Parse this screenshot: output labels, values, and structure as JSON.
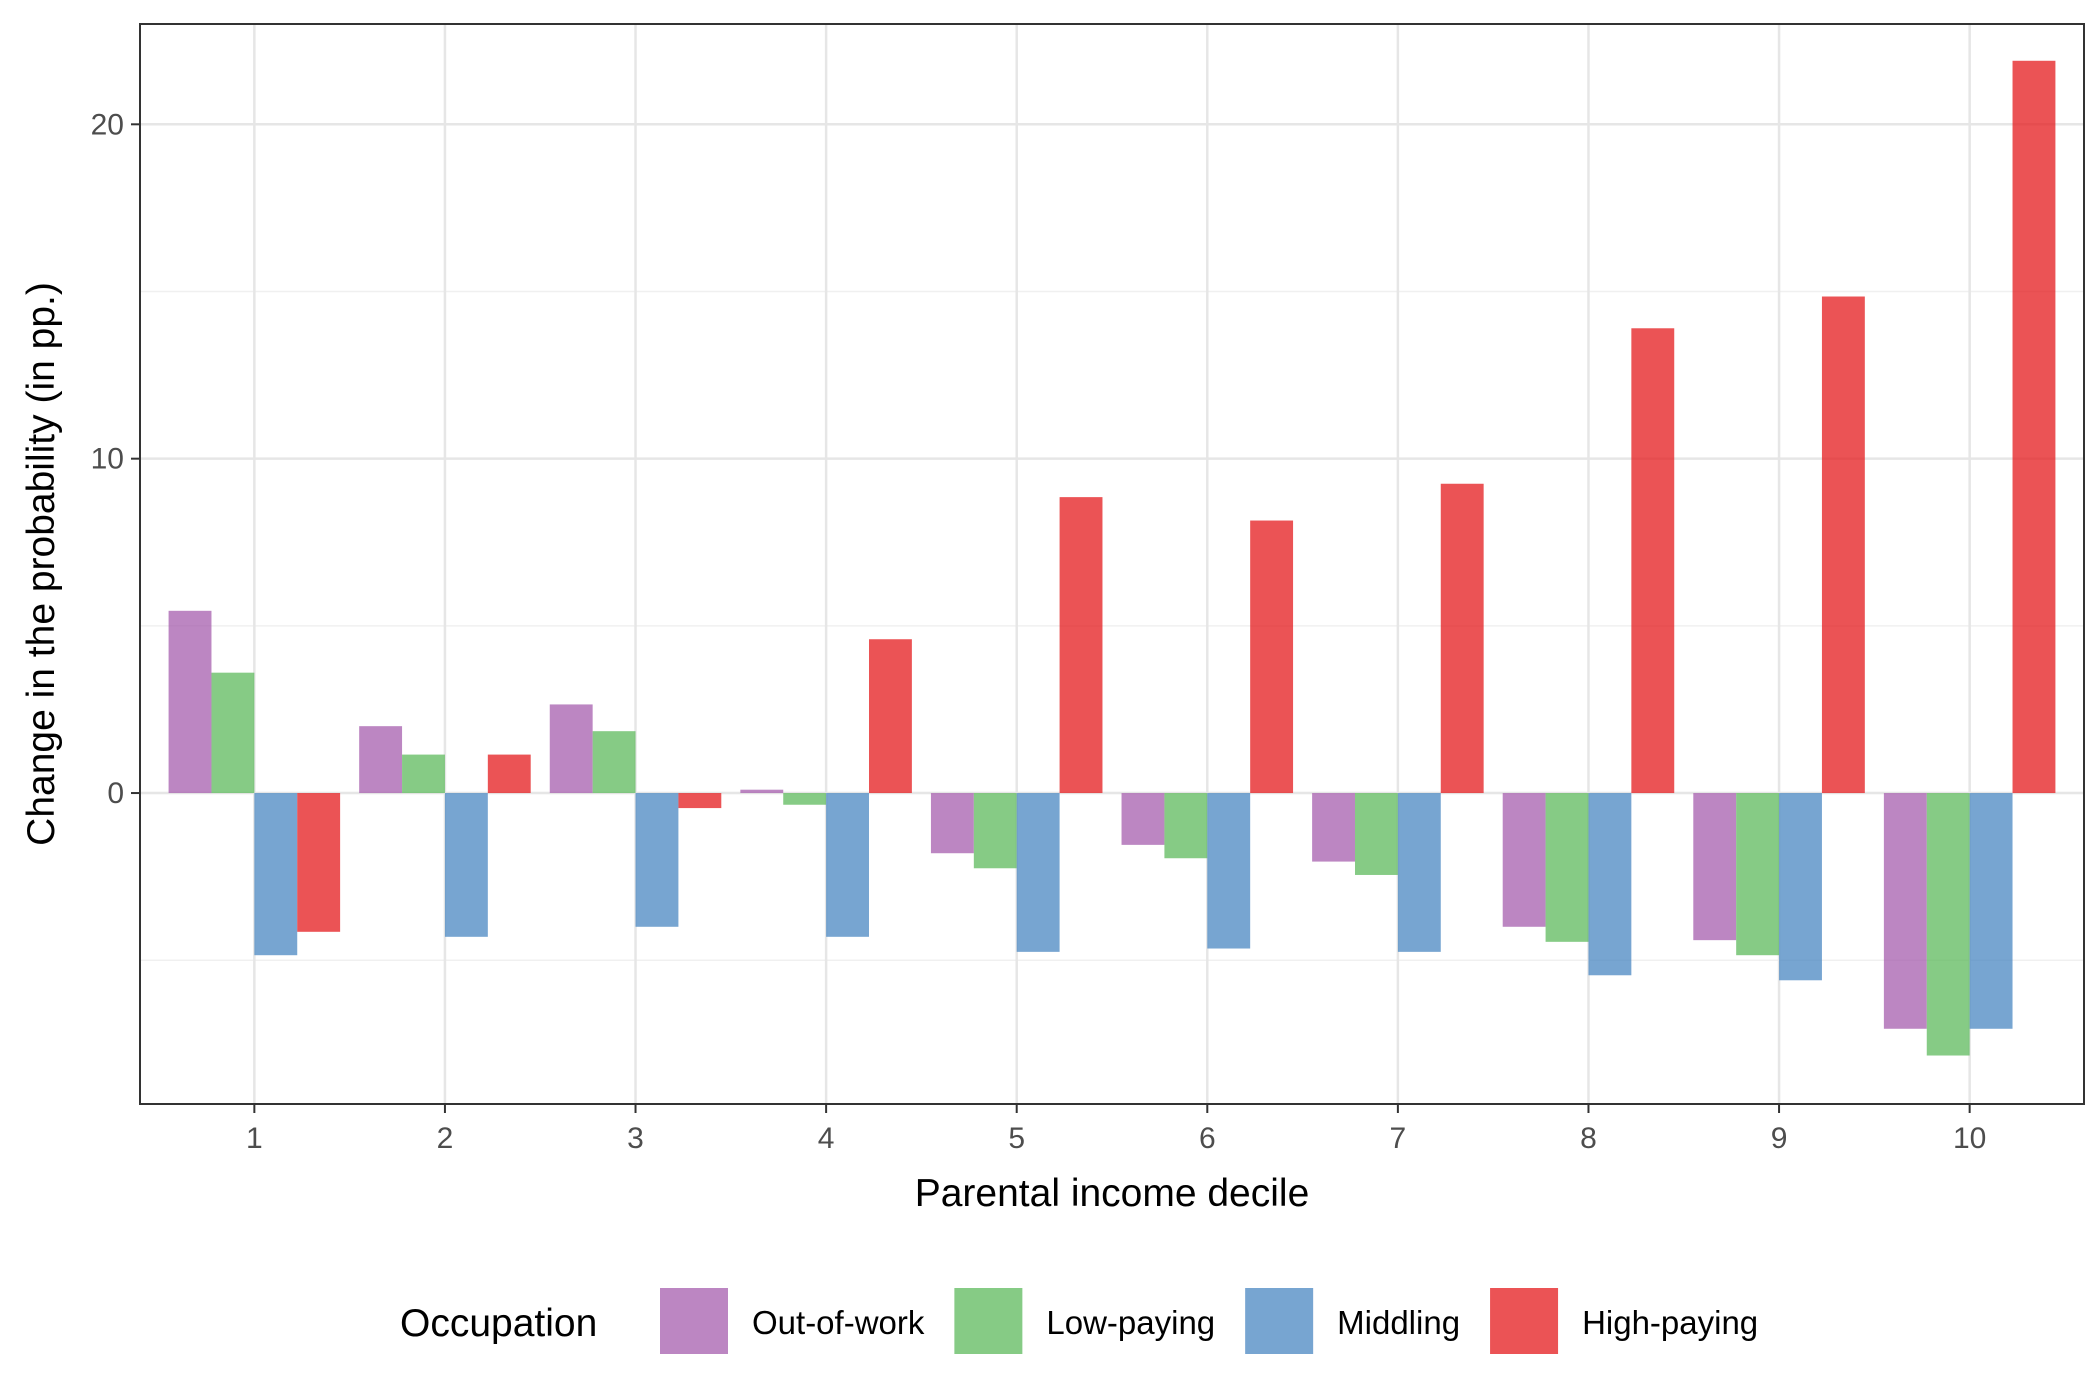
{
  "chart_data": {
    "type": "bar",
    "xlabel": "Parental income decile",
    "ylabel": "Change in the probability (in pp.)",
    "categories": [
      "1",
      "2",
      "3",
      "4",
      "5",
      "6",
      "7",
      "8",
      "9",
      "10"
    ],
    "ylim": [
      -9.3,
      23.0
    ],
    "yticks": [
      0,
      10,
      20
    ],
    "grid": true,
    "legend": {
      "title": "Occupation",
      "position": "bottom"
    },
    "series": [
      {
        "name": "Out-of-work",
        "color": "#a65dae",
        "values": [
          5.45,
          2.0,
          2.65,
          0.1,
          -1.8,
          -1.55,
          -2.05,
          -4.0,
          -4.4,
          -7.05
        ]
      },
      {
        "name": "Low-paying",
        "color": "#5dba5c",
        "values": [
          3.6,
          1.15,
          1.85,
          -0.35,
          -2.25,
          -1.95,
          -2.45,
          -4.45,
          -4.85,
          -7.85
        ]
      },
      {
        "name": "Middling",
        "color": "#4a87c1",
        "values": [
          -4.85,
          -4.3,
          -4.0,
          -4.3,
          -4.75,
          -4.65,
          -4.75,
          -5.45,
          -5.6,
          -7.05
        ]
      },
      {
        "name": "High-paying",
        "color": "#e41a1c",
        "values": [
          -4.15,
          1.15,
          -0.45,
          4.6,
          8.85,
          8.15,
          9.25,
          13.9,
          14.85,
          21.9
        ]
      }
    ]
  }
}
